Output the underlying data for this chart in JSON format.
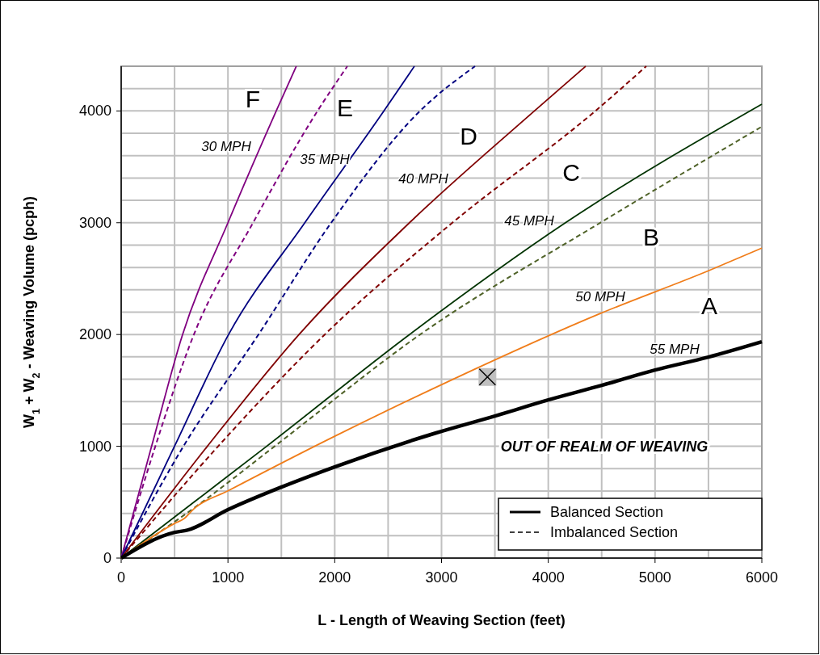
{
  "chart_data": {
    "type": "line",
    "xlabel": "L - Length of Weaving Section (feet)",
    "ylabel": "W$_{1}$ + W$_{2}$ - Weaving Volume (pcph)",
    "xlim": [
      0,
      6000
    ],
    "xticks": [
      0,
      {
        "value": 500,
        "label": null
      },
      1000,
      {
        "value": 1500,
        "label": null
      },
      2000,
      {
        "value": 2500,
        "label": null
      },
      3000,
      {
        "value": 3500,
        "label": null
      },
      4000,
      {
        "value": 4500,
        "label": null
      },
      5000,
      {
        "value": 5500,
        "label": null
      },
      6000
    ],
    "ylim": [
      0,
      4400
    ],
    "yticks": [
      0,
      {
        "value": 200,
        "label": null
      },
      {
        "value": 400,
        "label": null
      },
      {
        "value": 600,
        "label": null
      },
      {
        "value": 800,
        "label": null
      },
      1000,
      {
        "value": 1200,
        "label": null
      },
      {
        "value": 1400,
        "label": null
      },
      {
        "value": 1600,
        "label": null
      },
      {
        "value": 1800,
        "label": null
      },
      2000,
      {
        "value": 2200,
        "label": null
      },
      {
        "value": 2400,
        "label": null
      },
      {
        "value": 2600,
        "label": null
      },
      {
        "value": 2800,
        "label": null
      },
      3000,
      {
        "value": 3200,
        "label": null
      },
      {
        "value": 3400,
        "label": null
      },
      {
        "value": 3600,
        "label": null
      },
      {
        "value": 3800,
        "label": null
      },
      4000,
      {
        "value": 4200,
        "label": null
      },
      {
        "value": 4400,
        "label": null
      }
    ],
    "grid": true,
    "series": [
      {
        "color": "#800080",
        "line_style": "solid",
        "x": [
          0,
          285,
          575,
          1000,
          1452,
          1640
        ],
        "values": [
          0,
          1000,
          2000,
          3000,
          4000,
          4400
        ]
      },
      {
        "color": "#800080",
        "line_style": "dashed",
        "x": [
          0,
          320,
          681,
          1235,
          1839,
          2118
        ],
        "values": [
          0,
          1000,
          2000,
          3000,
          4000,
          4400
        ]
      },
      {
        "color": "#000080",
        "line_style": "solid",
        "x": [
          0,
          499,
          1006,
          1720,
          2461,
          2746
        ],
        "values": [
          0,
          1000,
          2000,
          3000,
          4000,
          4400
        ]
      },
      {
        "color": "#000080",
        "line_style": "dashed",
        "x": [
          0,
          583,
          1286,
          1967,
          2799,
          3314
        ],
        "values": [
          0,
          1000,
          2000,
          3000,
          4000,
          4400
        ]
      },
      {
        "color": "#800000",
        "line_style": "solid",
        "x": [
          0,
          807,
          1666,
          2700,
          3870,
          4350
        ],
        "values": [
          0,
          1000,
          2000,
          3000,
          4000,
          4400
        ]
      },
      {
        "color": "#800000",
        "line_style": "dashed",
        "x": [
          0,
          908,
          1907,
          3102,
          4441,
          4918
        ],
        "values": [
          0,
          1000,
          2000,
          3000,
          4000,
          4400
        ]
      },
      {
        "color": "#003300",
        "line_style": "solid",
        "x": [
          0,
          681,
          1362,
          2700,
          4161,
          6000
        ],
        "values": [
          0,
          500,
          1000,
          2000,
          3000,
          4060
        ]
      },
      {
        "color": "#4f6228",
        "line_style": "dashed",
        "x": [
          0,
          757,
          1437,
          2800,
          4487,
          6000
        ],
        "values": [
          0,
          500,
          1000,
          2000,
          3000,
          3860
        ]
      },
      {
        "color": "#f07d1a",
        "line_style": "solid",
        "x": [
          0,
          500,
          590,
          680,
          1000,
          2000,
          3100,
          4487,
          5500,
          6000
        ],
        "values": [
          0,
          310,
          354,
          440,
          601,
          1090,
          1596,
          2188,
          2570,
          2773
        ]
      },
      {
        "color": "#000000",
        "line_style": "solid",
        "x": [
          0,
          500,
          620,
          1000,
          1500,
          2000,
          2950,
          3500,
          4000,
          4500,
          5000,
          5500,
          6000
        ],
        "values": [
          0,
          230,
          250,
          433,
          635,
          816,
          1120,
          1271,
          1415,
          1545,
          1682,
          1798,
          1935
        ]
      },
      {
        "type": "scatter",
        "color": "#000000",
        "marker": "cross",
        "x": [
          3430
        ],
        "values": [
          1620
        ]
      }
    ],
    "annotations": [
      "F",
      "E",
      "D",
      "C",
      "B",
      "A",
      "30 MPH",
      "35 MPH",
      "40 MPH",
      "45 MPH",
      "50 MPH",
      "55 MPH",
      "OUT OF REALM OF WEAVING",
      "Balanced Section",
      "Imbalanced Section"
    ]
  }
}
